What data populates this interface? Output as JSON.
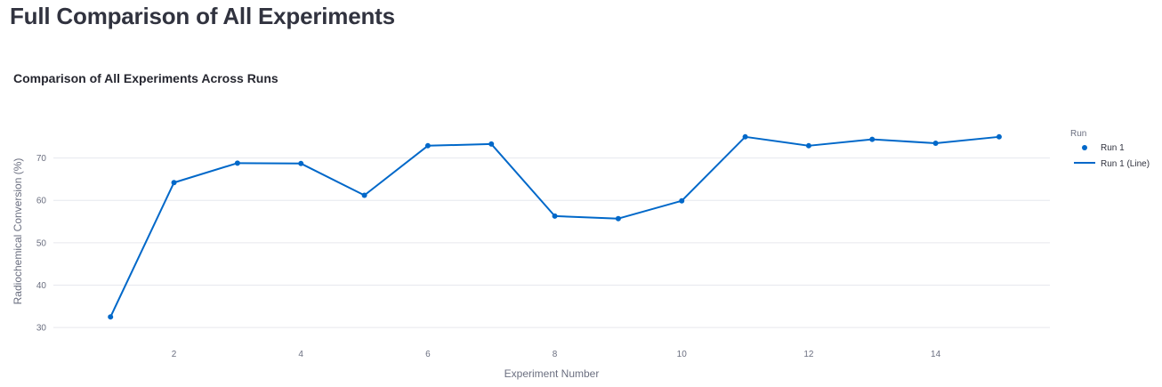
{
  "page": {
    "title": "Full Comparison of All Experiments"
  },
  "chart_data": {
    "type": "line",
    "title": "Comparison of All Experiments Across Runs",
    "xlabel": "Experiment Number",
    "ylabel": "Radiochemical Conversion (%)",
    "xlim": [
      0.1,
      15.8
    ],
    "ylim": [
      27.5,
      80
    ],
    "x_ticks": [
      2,
      4,
      6,
      8,
      10,
      12,
      14
    ],
    "y_ticks": [
      30,
      40,
      50,
      60,
      70
    ],
    "grid": "horizontal",
    "legend": {
      "title": "Run",
      "placement": "right"
    },
    "x": [
      1,
      2,
      3,
      4,
      5,
      6,
      7,
      8,
      9,
      10,
      11,
      12,
      13,
      14,
      15
    ],
    "series": [
      {
        "name": "Run 1",
        "mode": "markers",
        "color": "#0068c9",
        "values": [
          32.5,
          64.2,
          68.8,
          68.7,
          61.2,
          72.9,
          73.3,
          56.3,
          55.7,
          59.9,
          75.0,
          72.9,
          74.4,
          73.5,
          75.0
        ]
      },
      {
        "name": "Run 1 (Line)",
        "mode": "lines",
        "color": "#0068c9",
        "values": [
          32.5,
          64.2,
          68.8,
          68.7,
          61.2,
          72.9,
          73.3,
          56.3,
          55.7,
          59.9,
          75.0,
          72.9,
          74.4,
          73.5,
          75.0
        ]
      }
    ]
  }
}
